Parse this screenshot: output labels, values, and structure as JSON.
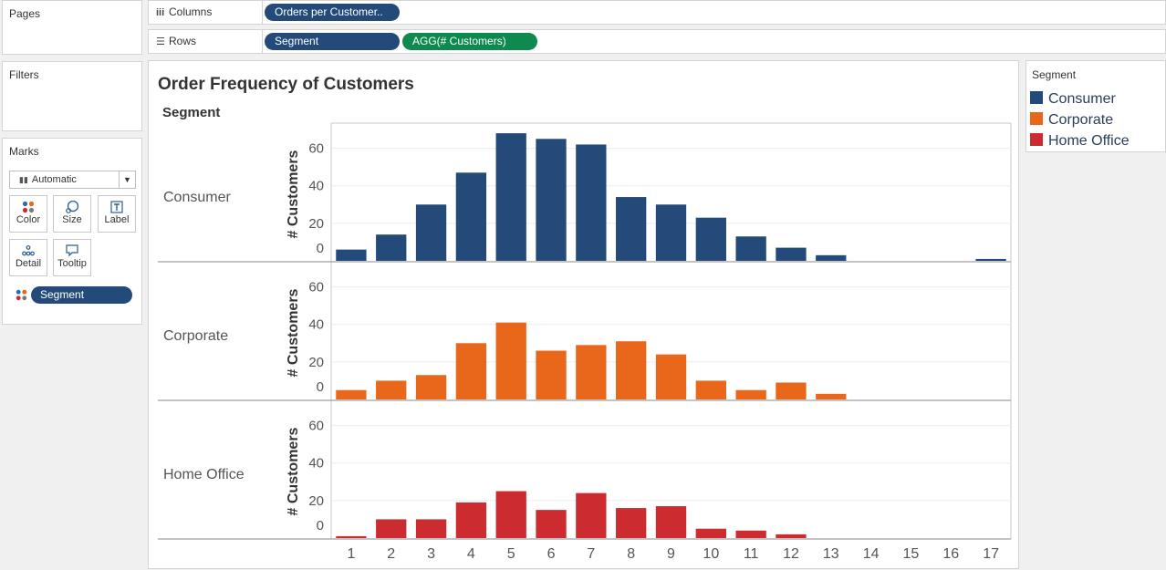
{
  "panels": {
    "pages": "Pages",
    "filters": "Filters",
    "marks": "Marks"
  },
  "columns_shelf": {
    "label": "Columns",
    "pill": "Orders per Customer.."
  },
  "rows_shelf": {
    "label": "Rows",
    "pills": [
      "Segment",
      "AGG(# Customers)"
    ]
  },
  "marks_card": {
    "type": "Automatic",
    "buttons": [
      "Color",
      "Size",
      "Label",
      "Detail",
      "Tooltip"
    ],
    "color_pill": "Segment"
  },
  "legend": {
    "title": "Segment",
    "items": [
      {
        "label": "Consumer",
        "color": "#244a7a"
      },
      {
        "label": "Corporate",
        "color": "#e8671a"
      },
      {
        "label": "Home Office",
        "color": "#cc2b2f"
      }
    ]
  },
  "chart_data": {
    "type": "bar",
    "title": "Order Frequency of Customers",
    "row_header": "Segment",
    "ylabel": "# Customers",
    "ylim": [
      0,
      70
    ],
    "yticks": [
      0,
      20,
      40,
      60
    ],
    "categories": [
      1,
      2,
      3,
      4,
      5,
      6,
      7,
      8,
      9,
      10,
      11,
      12,
      13,
      14,
      15,
      16,
      17
    ],
    "series": [
      {
        "name": "Consumer",
        "color": "#244a7a",
        "values": [
          6,
          14,
          30,
          47,
          68,
          65,
          62,
          34,
          30,
          23,
          13,
          7,
          3,
          0,
          0,
          0,
          1
        ]
      },
      {
        "name": "Corporate",
        "color": "#e8671a",
        "values": [
          5,
          10,
          13,
          30,
          41,
          26,
          29,
          31,
          24,
          10,
          5,
          9,
          3,
          0,
          0,
          0,
          0
        ]
      },
      {
        "name": "Home Office",
        "color": "#cc2b2f",
        "values": [
          1,
          10,
          10,
          19,
          25,
          15,
          24,
          16,
          17,
          5,
          4,
          2,
          0,
          0,
          0,
          0,
          0
        ]
      }
    ]
  }
}
